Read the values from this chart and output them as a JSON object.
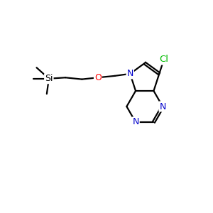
{
  "background": "#ffffff",
  "atom_color_N": "#0000cc",
  "atom_color_O": "#ff0000",
  "atom_color_Cl": "#00bb00",
  "atom_color_Si": "#000000",
  "atom_color_C": "#000000",
  "bond_color": "#000000",
  "bond_lw": 1.6,
  "font_size_atom": 9.0,
  "fig_size": [
    3.0,
    3.0
  ],
  "dpi": 100,
  "xlim": [
    0,
    10
  ],
  "ylim": [
    0,
    10
  ]
}
